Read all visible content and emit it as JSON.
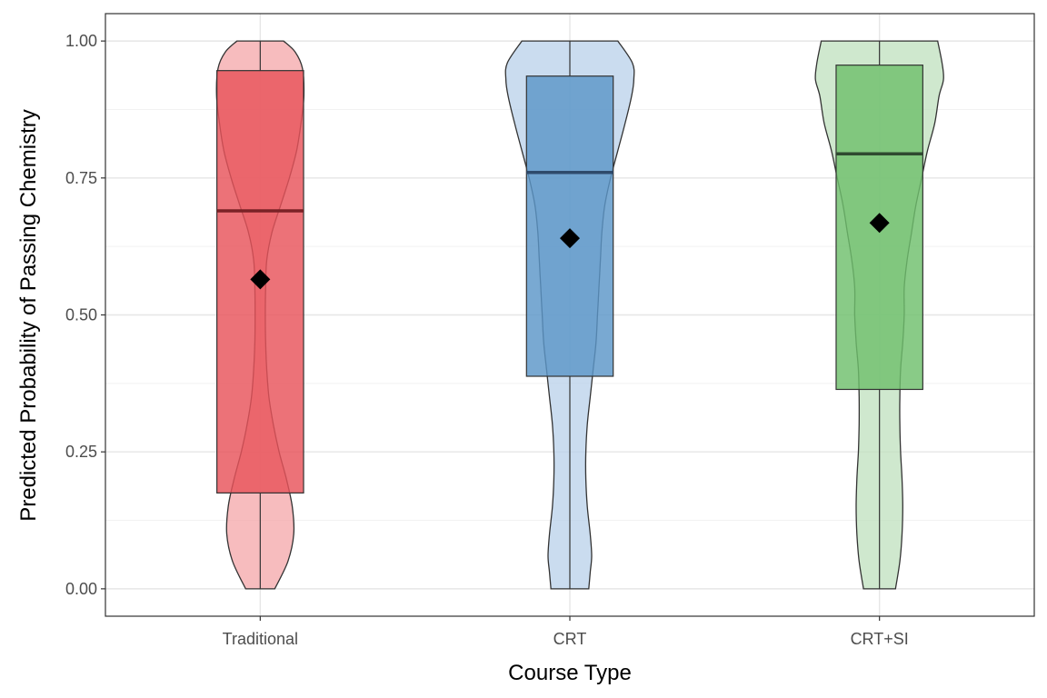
{
  "chart_data": {
    "type": "violin",
    "title": "",
    "xlabel": "Course Type",
    "ylabel": "Predicted Probability of Passing Chemistry",
    "ylim": [
      -0.05,
      1.05
    ],
    "yticks": [
      "0.00",
      "0.25",
      "0.50",
      "0.75",
      "1.00"
    ],
    "grid": true,
    "legend": "none",
    "categories": [
      "Traditional",
      "CRT",
      "CRT+SI"
    ],
    "groups": [
      {
        "category": "Traditional",
        "violin_color": "#f4a6a8",
        "box_color": "#e8535a",
        "median_color": "#7a2226",
        "violin_profile": [
          [
            0.0,
            0.1
          ],
          [
            0.05,
            0.19
          ],
          [
            0.1,
            0.23
          ],
          [
            0.15,
            0.22
          ],
          [
            0.2,
            0.18
          ],
          [
            0.25,
            0.13
          ],
          [
            0.3,
            0.09
          ],
          [
            0.35,
            0.06
          ],
          [
            0.4,
            0.045
          ],
          [
            0.45,
            0.037
          ],
          [
            0.5,
            0.035
          ],
          [
            0.55,
            0.037
          ],
          [
            0.6,
            0.045
          ],
          [
            0.65,
            0.08
          ],
          [
            0.7,
            0.14
          ],
          [
            0.75,
            0.2
          ],
          [
            0.8,
            0.25
          ],
          [
            0.85,
            0.28
          ],
          [
            0.9,
            0.3
          ],
          [
            0.95,
            0.29
          ],
          [
            0.98,
            0.24
          ],
          [
            1.0,
            0.16
          ]
        ],
        "q1": 0.175,
        "median": 0.69,
        "q3": 0.946,
        "mean": 0.565,
        "whisker_low": 0.0,
        "whisker_high": 1.0
      },
      {
        "category": "CRT",
        "violin_color": "#b8d0ea",
        "box_color": "#5b96c8",
        "median_color": "#2e4a6b",
        "violin_profile": [
          [
            0.0,
            0.13
          ],
          [
            0.03,
            0.14
          ],
          [
            0.06,
            0.15
          ],
          [
            0.1,
            0.14
          ],
          [
            0.15,
            0.12
          ],
          [
            0.2,
            0.11
          ],
          [
            0.25,
            0.11
          ],
          [
            0.3,
            0.12
          ],
          [
            0.35,
            0.14
          ],
          [
            0.4,
            0.16
          ],
          [
            0.45,
            0.18
          ],
          [
            0.5,
            0.19
          ],
          [
            0.55,
            0.2
          ],
          [
            0.6,
            0.21
          ],
          [
            0.65,
            0.22
          ],
          [
            0.7,
            0.24
          ],
          [
            0.75,
            0.28
          ],
          [
            0.8,
            0.33
          ],
          [
            0.85,
            0.38
          ],
          [
            0.9,
            0.425
          ],
          [
            0.93,
            0.44
          ],
          [
            0.96,
            0.43
          ],
          [
            1.0,
            0.33
          ]
        ],
        "q1": 0.388,
        "median": 0.76,
        "q3": 0.936,
        "mean": 0.64,
        "whisker_low": 0.0,
        "whisker_high": 1.0
      },
      {
        "category": "CRT+SI",
        "violin_color": "#bfe0bd",
        "box_color": "#6fc06c",
        "median_color": "#2f4a30",
        "violin_profile": [
          [
            0.0,
            0.11
          ],
          [
            0.05,
            0.14
          ],
          [
            0.1,
            0.155
          ],
          [
            0.15,
            0.16
          ],
          [
            0.2,
            0.155
          ],
          [
            0.25,
            0.145
          ],
          [
            0.3,
            0.14
          ],
          [
            0.35,
            0.14
          ],
          [
            0.4,
            0.145
          ],
          [
            0.45,
            0.16
          ],
          [
            0.5,
            0.17
          ],
          [
            0.55,
            0.17
          ],
          [
            0.6,
            0.19
          ],
          [
            0.65,
            0.22
          ],
          [
            0.7,
            0.25
          ],
          [
            0.75,
            0.29
          ],
          [
            0.8,
            0.33
          ],
          [
            0.85,
            0.38
          ],
          [
            0.9,
            0.41
          ],
          [
            0.93,
            0.44
          ],
          [
            0.96,
            0.43
          ],
          [
            1.0,
            0.4
          ]
        ],
        "q1": 0.364,
        "median": 0.794,
        "q3": 0.956,
        "mean": 0.668,
        "whisker_low": 0.0,
        "whisker_high": 1.0
      }
    ]
  }
}
